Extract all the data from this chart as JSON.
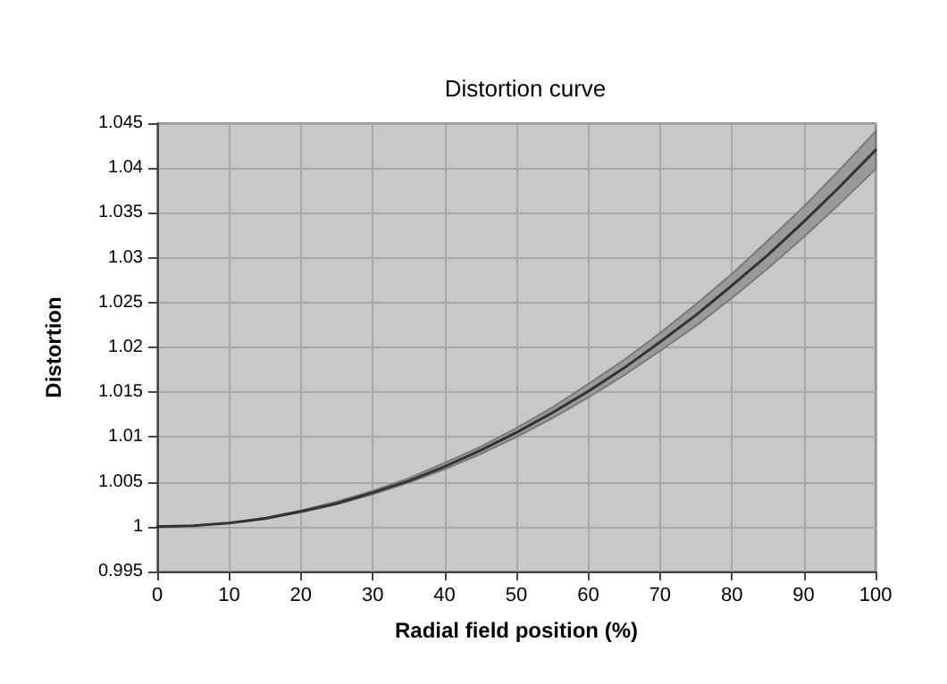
{
  "chart_data": {
    "type": "line",
    "title": "Distortion curve",
    "xlabel": "Radial field position (%)",
    "ylabel": "Distortion",
    "x": [
      0,
      5,
      10,
      15,
      20,
      25,
      30,
      35,
      40,
      45,
      50,
      55,
      60,
      65,
      70,
      75,
      80,
      85,
      90,
      95,
      100
    ],
    "series": [
      {
        "color": "#333333",
        "values": [
          1,
          1.0001,
          1.0004,
          1.0009,
          1.0017,
          1.0026,
          1.0038,
          1.0051,
          1.0067,
          1.0085,
          1.0105,
          1.0127,
          1.0151,
          1.0177,
          1.0206,
          1.0236,
          1.0269,
          1.0303,
          1.034,
          1.0379,
          1.042
        ],
        "upper": [
          1,
          1.0001,
          1.0004,
          1.001,
          1.0018,
          1.0028,
          1.004,
          1.0054,
          1.0071,
          1.0089,
          1.011,
          1.0133,
          1.0159,
          1.0186,
          1.0216,
          1.0248,
          1.0282,
          1.0319,
          1.0357,
          1.0398,
          1.0441
        ],
        "lower": [
          1,
          1.0001,
          1.0004,
          1.0009,
          1.0016,
          1.0025,
          1.0036,
          1.0049,
          1.0064,
          1.0081,
          1.01,
          1.0121,
          1.0144,
          1.0169,
          1.0196,
          1.0224,
          1.0255,
          1.0288,
          1.0323,
          1.036,
          1.0399
        ]
      }
    ],
    "xlim": [
      0,
      100
    ],
    "xticks": [
      0,
      10,
      20,
      30,
      40,
      50,
      60,
      70,
      80,
      90,
      100
    ],
    "ylim": [
      0.995,
      1.045
    ],
    "yticks": [
      0.995,
      1,
      1.005,
      1.01,
      1.015,
      1.02,
      1.025,
      1.03,
      1.035,
      1.04,
      1.045
    ],
    "grid": true,
    "marker": "none",
    "line_style": "solid"
  }
}
